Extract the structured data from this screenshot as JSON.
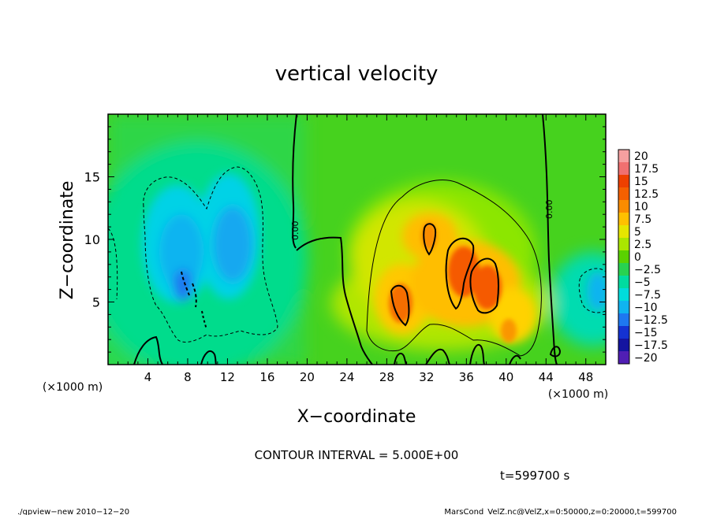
{
  "chart_data": {
    "type": "heatmap",
    "title": "vertical velocity",
    "xlabel": "X−coordinate",
    "ylabel": "Z−coordinate",
    "x_unit": "(×1000 m)",
    "y_unit": "(×1000 m)",
    "xlim": [
      0,
      50
    ],
    "ylim": [
      0,
      20
    ],
    "x_ticks": [
      4,
      8,
      12,
      16,
      20,
      24,
      28,
      32,
      36,
      40,
      44,
      48
    ],
    "y_ticks": [
      5,
      10,
      15
    ],
    "x_tick_labels": [
      "4",
      "8",
      "12",
      "16",
      "20",
      "24",
      "28",
      "32",
      "36",
      "40",
      "44",
      "48"
    ],
    "y_tick_labels": [
      "5",
      "10",
      "15"
    ],
    "colorbar": {
      "labels": [
        "20",
        "17.5",
        "15",
        "12.5",
        "10",
        "7.5",
        "5",
        "2.5",
        "0",
        "−2.5",
        "−5",
        "−7.5",
        "−10",
        "−12.5",
        "−15",
        "−17.5",
        "−20"
      ],
      "colors": [
        "#f5a0a0",
        "#f07070",
        "#ee4000",
        "#f56000",
        "#fa8c00",
        "#ffc000",
        "#e6e600",
        "#aae600",
        "#5ad200",
        "#28d250",
        "#00dca0",
        "#00dcdc",
        "#10b4f0",
        "#1e78f0",
        "#1432d2",
        "#1414a0",
        "#501eb4"
      ]
    },
    "contour_label": "0.00",
    "regions": [
      {
        "kind": "upward",
        "x": 34,
        "z": 7.5,
        "w_max": 12
      },
      {
        "kind": "upward",
        "x": 29.5,
        "z": 5.5,
        "w_max": 11
      },
      {
        "kind": "upward",
        "x": 32,
        "z": 10,
        "w_max": 9
      },
      {
        "kind": "downward",
        "x": 8,
        "z": 9,
        "w_min": -9
      },
      {
        "kind": "downward",
        "x": 12,
        "z": 10,
        "w_min": -7
      },
      {
        "kind": "downward",
        "x": 49.5,
        "z": 6,
        "w_min": -6
      }
    ]
  },
  "annotations": {
    "contour_interval": "CONTOUR INTERVAL = 5.000E+00",
    "time": "t=599700 s",
    "footer_left": "./gpview−new  2010−12−20",
    "footer_right": "MarsCond_VelZ.nc@VelZ,x=0:50000,z=0:20000,t=599700"
  }
}
